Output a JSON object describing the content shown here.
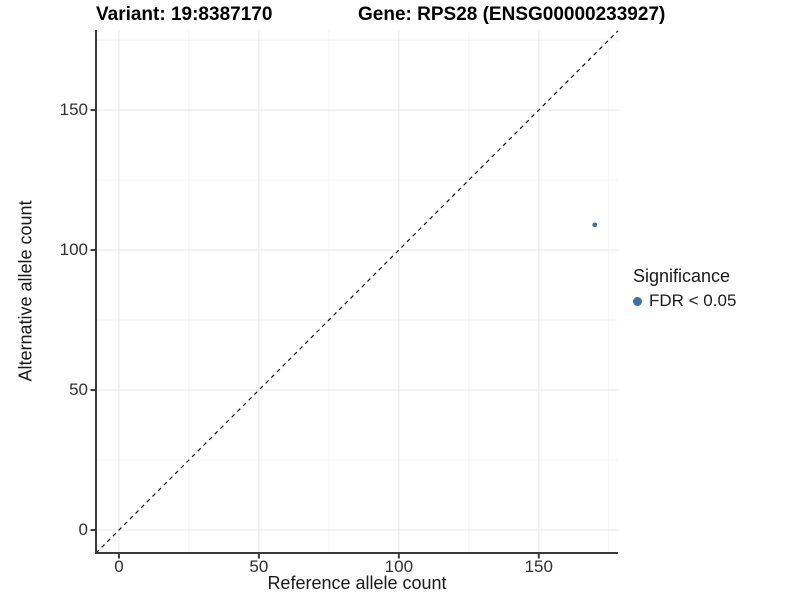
{
  "chart_data": {
    "type": "scatter",
    "title_left": "Variant: 19:8387170",
    "title_right": "Gene: RPS28 (ENSG00000233927)",
    "xlabel": "Reference allele count",
    "ylabel": "Alternative allele count",
    "x_ticks": [
      0,
      50,
      100,
      150
    ],
    "y_ticks": [
      0,
      50,
      100,
      150
    ],
    "x_minor_ticks": [
      25,
      75,
      125,
      175
    ],
    "y_minor_ticks": [
      25,
      75,
      125,
      175
    ],
    "xlim": [
      -8.2,
      178.3
    ],
    "ylim": [
      -8.2,
      178.6
    ],
    "grid": {
      "major": true,
      "minor": true
    },
    "series": [
      {
        "name": "FDR < 0.05",
        "color": "#3d6fa8",
        "points": [
          {
            "x": 170,
            "y": 109
          }
        ]
      }
    ],
    "reference_line": {
      "kind": "identity y = x",
      "style": "dashed",
      "color": "#000000"
    },
    "legend": {
      "title": "Significance",
      "position": "right",
      "items": [
        {
          "label": "FDR < 0.05",
          "color": "#3d6fa8"
        }
      ]
    },
    "colors": {
      "background": "#ffffff",
      "grid_major": "#e7e7e7",
      "grid_minor": "#f3f3f3",
      "axis_line": "#3a3a3a",
      "tick_text": "#303030",
      "point": "#3d6fa8"
    }
  }
}
